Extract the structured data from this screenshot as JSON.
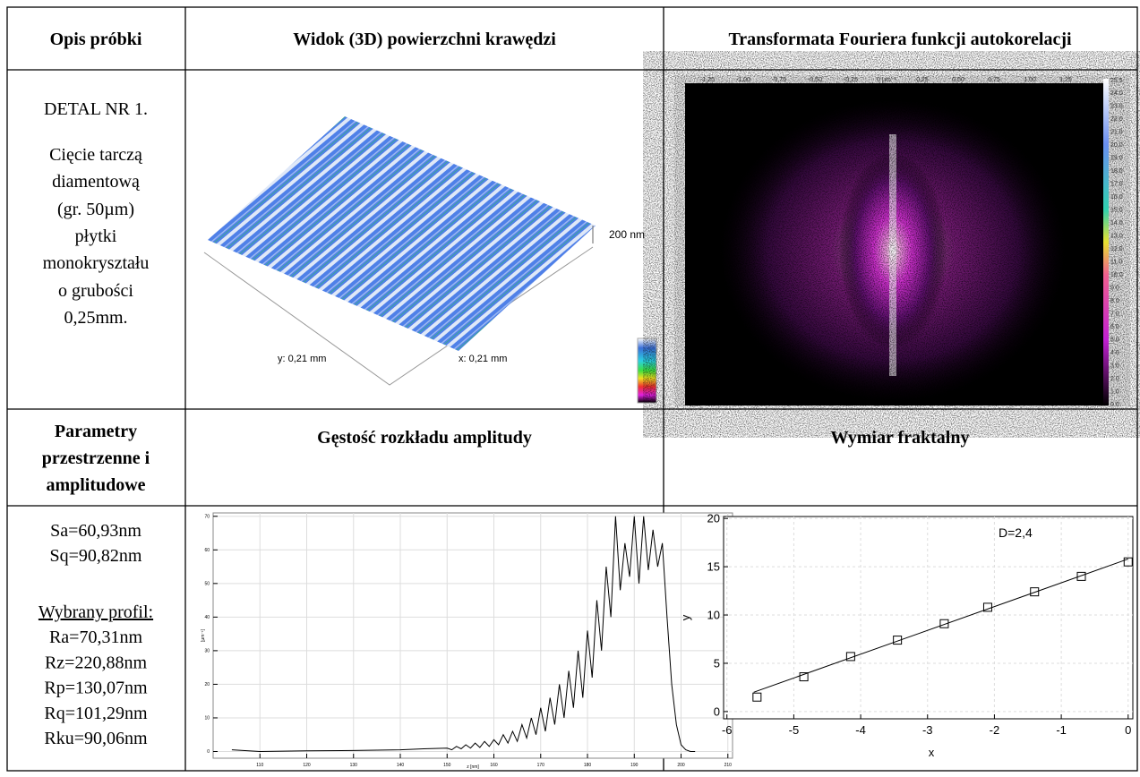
{
  "header": [
    "Opis próbki",
    "Widok (3D) powierzchni krawędzi",
    "Transformata Fouriera funkcji autokorelacji"
  ],
  "sample": [
    "DETAL NR 1.",
    "Cięcie tarczą",
    "diamentową",
    "(gr. 50µm)",
    "płytki",
    "monokryształu",
    "o grubości",
    "0,25mm."
  ],
  "surface": {
    "height_label": "200 nm",
    "y_label": "y: 0,21 mm",
    "x_label": "x: 0,21 mm"
  },
  "fft": {
    "ruler_labels": [
      "-1,25",
      "-1,00",
      "-0,75",
      "-0,50",
      "-0,25",
      "0 µm⁻¹",
      "0,25",
      "0,50",
      "0,75",
      "1,00",
      "1,25"
    ],
    "colorbar_labels": [
      "25.5",
      "24.0",
      "23.0",
      "22.0",
      "21.0",
      "20.0",
      "19.0",
      "18.0",
      "17.0",
      "16.0",
      "15.0",
      "14.0",
      "13.0",
      "12.0",
      "11.0",
      "10.0",
      "9.0",
      "8.0",
      "7.0",
      "6.0",
      "5.0",
      "4.0",
      "3.0",
      "2.0",
      "1.0",
      "0.0"
    ]
  },
  "header2": {
    "parameters": [
      "Parametry",
      "przestrzenne i",
      "amplitudowe"
    ],
    "histogram": "Gęstość rozkładu amplitudy",
    "fractal": "Wymiar fraktalny"
  },
  "parameters": {
    "areal": [
      "Sa=60,93nm",
      "Sq=90,82nm"
    ],
    "profile_title": "Wybrany profil:",
    "profile": [
      "Ra=70,31nm",
      "Rz=220,88nm",
      "Rp=130,07nm",
      "Rq=101,29nm",
      "Rku=90,06nm"
    ]
  },
  "histogram": {
    "type": "line",
    "x_label": "z [nm]",
    "y_label": "[µm⁻¹]",
    "x": [
      104,
      110,
      120,
      130,
      140,
      145,
      150,
      151,
      152,
      153,
      154,
      155,
      156,
      157,
      158,
      159,
      160,
      161,
      162,
      163,
      164,
      165,
      166,
      167,
      168,
      169,
      170,
      171,
      172,
      173,
      174,
      175,
      176,
      177,
      178,
      179,
      180,
      181,
      182,
      183,
      184,
      185,
      186,
      187,
      188,
      189,
      190,
      191,
      192,
      193,
      194,
      195,
      196,
      197,
      198,
      199,
      200,
      201,
      202,
      203
    ],
    "values": [
      0.5,
      0,
      0.2,
      0.3,
      0.5,
      0.8,
      1,
      0.5,
      1.5,
      0.8,
      2,
      1,
      2.5,
      1.2,
      3,
      1.5,
      3.5,
      2,
      5,
      2.5,
      6,
      3,
      8,
      4,
      10,
      5,
      13,
      6,
      16,
      8,
      20,
      10,
      24,
      13,
      30,
      16,
      36,
      22,
      45,
      30,
      55,
      40,
      70,
      48,
      62,
      52,
      70,
      50,
      70,
      54,
      66,
      55,
      62,
      40,
      20,
      8,
      2,
      0.5,
      0,
      0
    ],
    "color": "#000000",
    "xlim": [
      100,
      211
    ],
    "ylim": [
      -2,
      71
    ],
    "xticks": [
      110,
      120,
      130,
      140,
      150,
      160,
      170,
      180,
      190,
      200,
      210
    ],
    "yticks": [
      0,
      10,
      20,
      30,
      40,
      50,
      60,
      70
    ],
    "grid": true
  },
  "fractal": {
    "type": "scatter",
    "annotation": "D=2,4",
    "x_label": "x",
    "y_label": "y",
    "x": [
      -5.55,
      -4.85,
      -4.15,
      -3.45,
      -2.75,
      -2.1,
      -1.4,
      -0.7,
      0
    ],
    "values": [
      1.5,
      3.6,
      5.7,
      7.4,
      9.1,
      10.8,
      12.4,
      14.0,
      15.5
    ],
    "fit": {
      "x": [
        -5.6,
        0
      ],
      "y": [
        2,
        15.8
      ]
    },
    "color": "#000000",
    "xlim": [
      -6.05,
      0.07
    ],
    "ylim": [
      -0.75,
      20.2
    ],
    "xticks": [
      -6,
      -5,
      -4,
      -3,
      -2,
      -1,
      0
    ],
    "yticks": [
      0,
      5,
      10,
      15,
      20
    ],
    "grid": true
  }
}
